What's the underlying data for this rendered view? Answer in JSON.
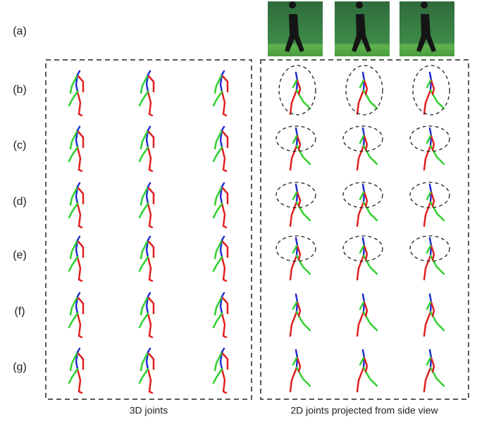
{
  "row_labels": [
    "(a)",
    "(b)",
    "(c)",
    "(d)",
    "(e)",
    "(f)",
    "(g)"
  ],
  "captions": {
    "left": "3D joints",
    "right": "2D joints projected from side view"
  }
}
